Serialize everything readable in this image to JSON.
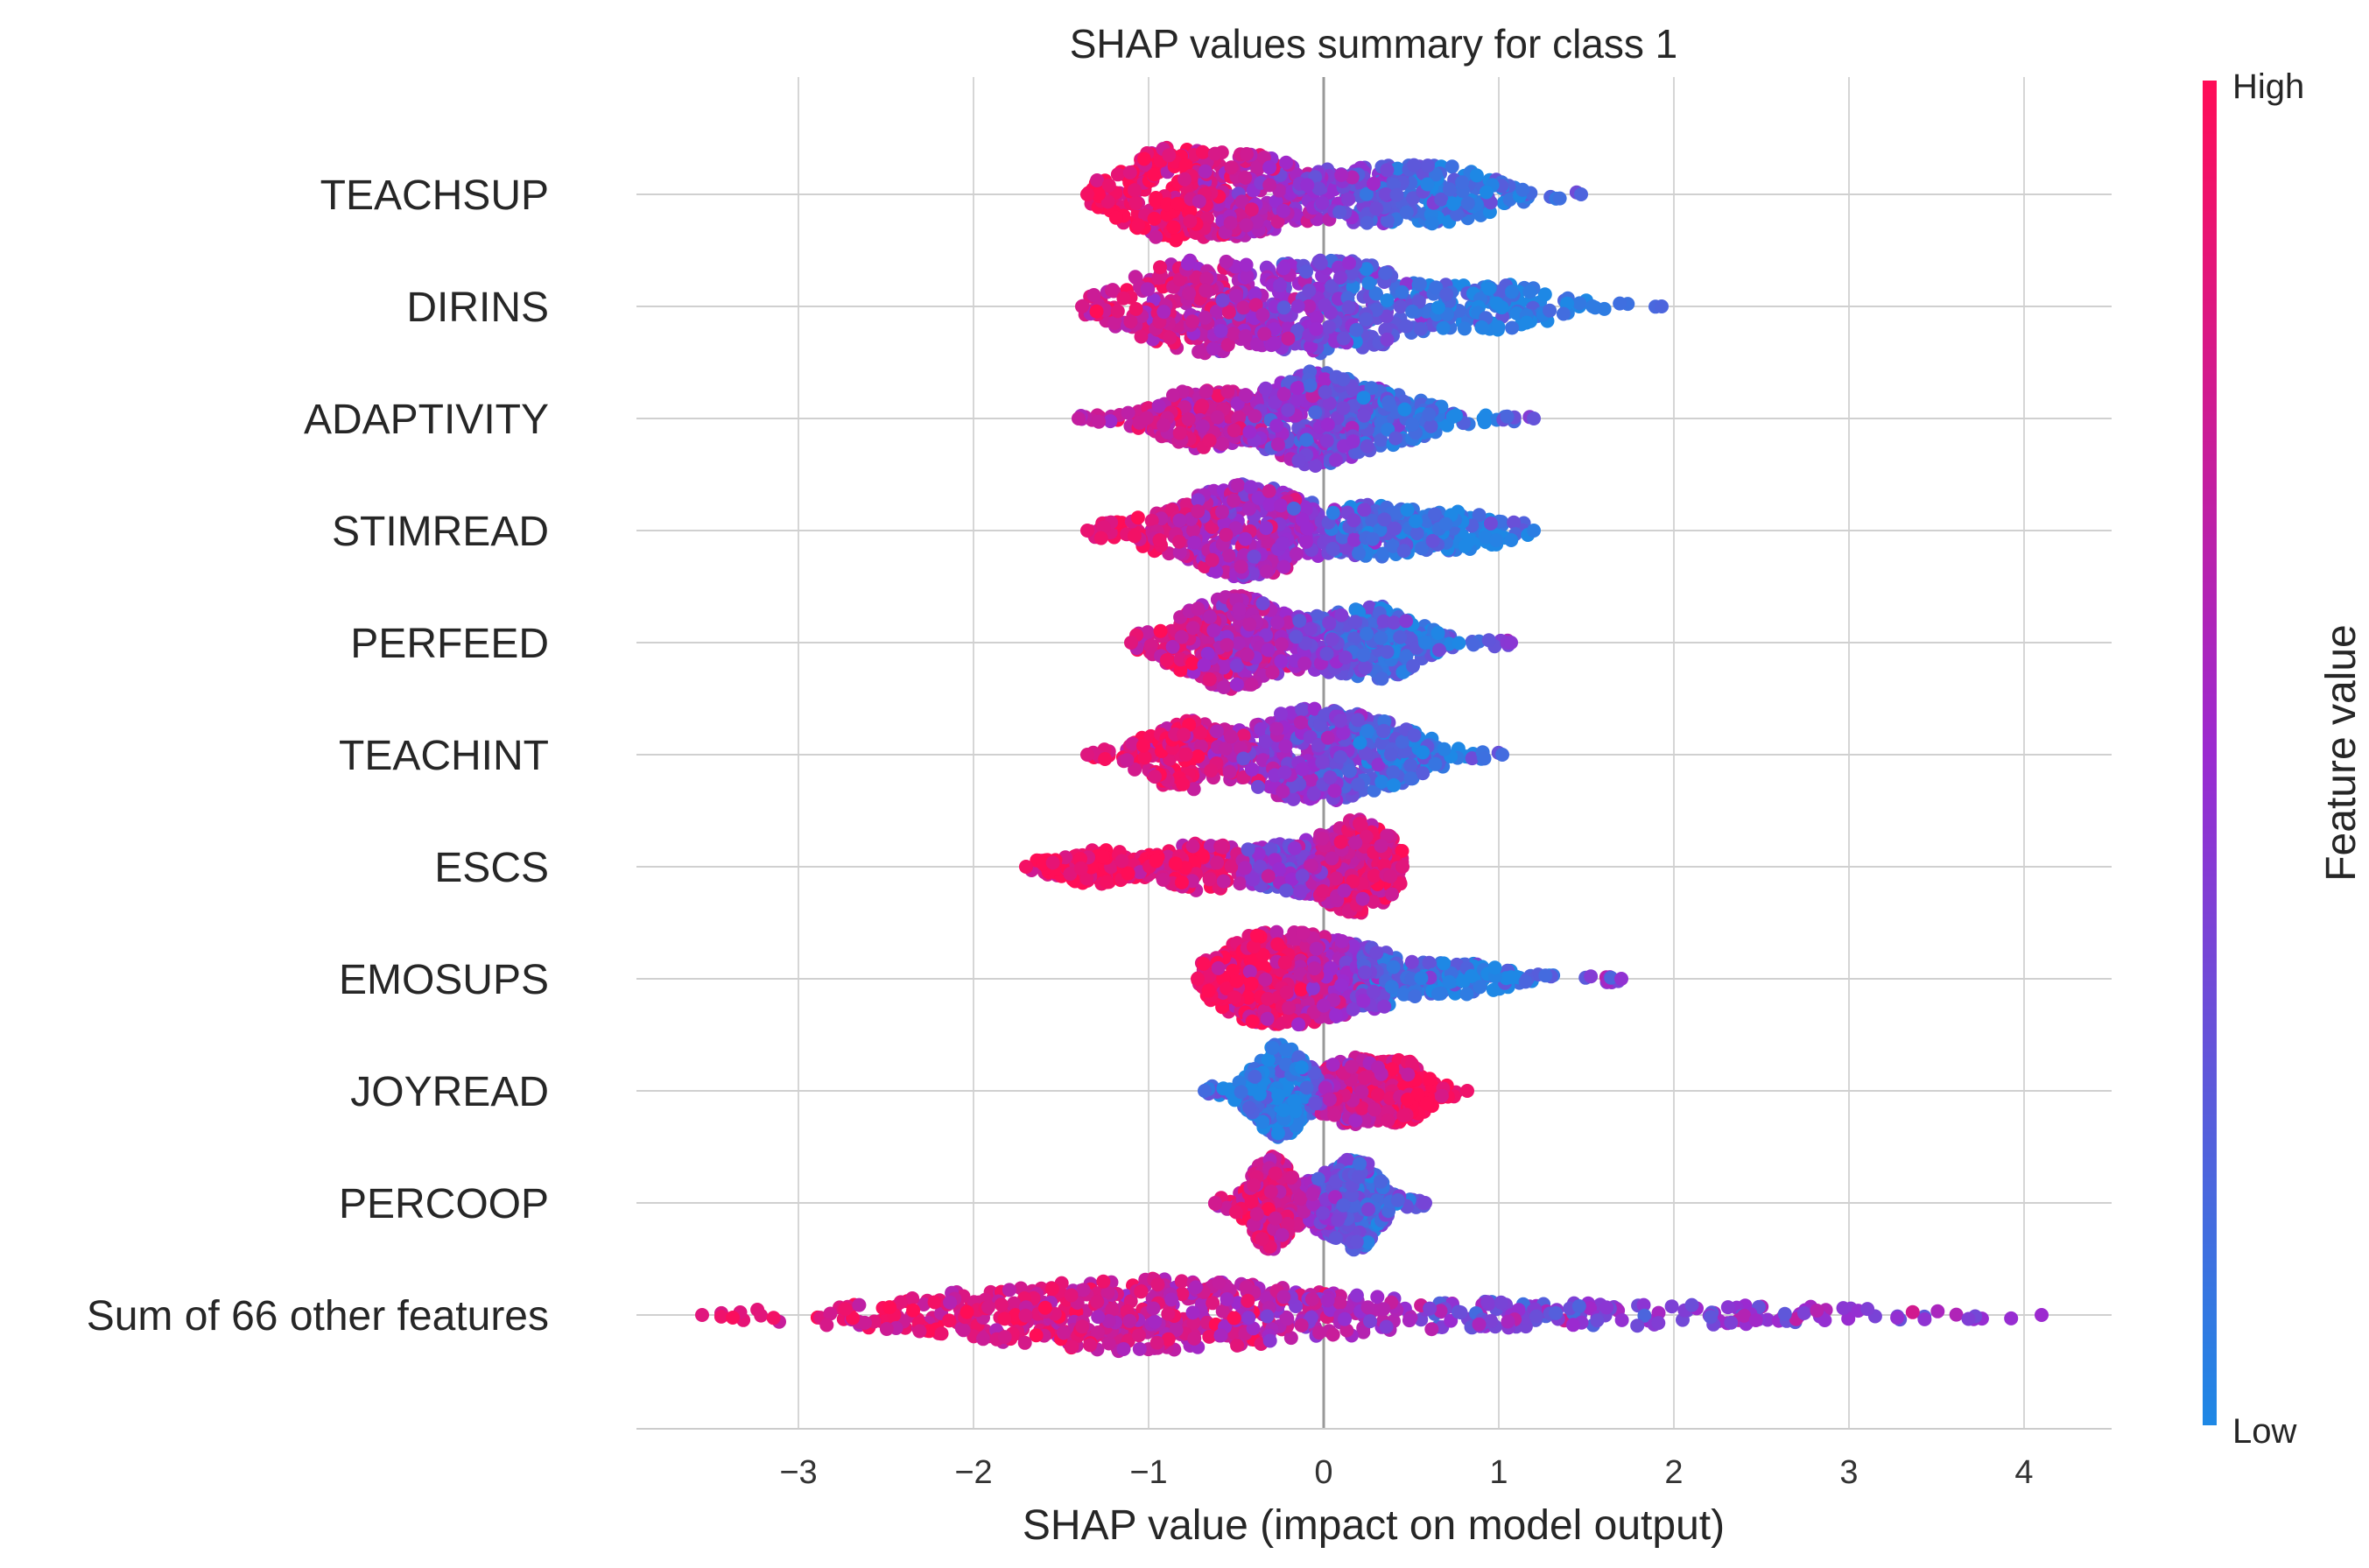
{
  "chart_data": {
    "type": "scatter",
    "subtype": "shap-beeswarm-summary",
    "title": "SHAP values summary for class 1",
    "xlabel": "SHAP value (impact on model output)",
    "xlim": [
      -3.9,
      4.5
    ],
    "xticks": [
      "−3",
      "−2",
      "−1",
      "0",
      "1",
      "2",
      "3",
      "4"
    ],
    "xtick_values": [
      -3,
      -2,
      -1,
      0,
      1,
      2,
      3,
      4
    ],
    "grid": true,
    "colorbar": {
      "label": "Feature value",
      "high_label": "High",
      "low_label": "Low",
      "high_color": "#ff0d57",
      "mid_color": "#9b2ad0",
      "low_color": "#1e88e5"
    },
    "features": [
      {
        "name": "TEACHSUP",
        "min": -1.35,
        "max": 1.47,
        "clusters": [
          [
            -0.9,
            1.0,
            0.95
          ],
          [
            -0.4,
            0.8,
            0.6
          ],
          [
            0.2,
            0.5,
            0.35
          ],
          [
            0.7,
            0.55,
            0.1
          ]
        ]
      },
      {
        "name": "DIRINS",
        "min": -1.38,
        "max": 1.93,
        "clusters": [
          [
            -0.85,
            0.9,
            0.8
          ],
          [
            -0.45,
            0.6,
            0.55
          ],
          [
            0.0,
            0.75,
            0.4
          ],
          [
            0.3,
            0.55,
            0.15
          ],
          [
            1.0,
            0.45,
            0.05
          ]
        ]
      },
      {
        "name": "ADAPTIVITY",
        "min": -1.4,
        "max": 1.2,
        "clusters": [
          [
            -0.7,
            0.85,
            0.75
          ],
          [
            -0.15,
            0.7,
            0.45
          ],
          [
            0.0,
            0.9,
            0.35
          ],
          [
            0.4,
            0.6,
            0.1
          ]
        ]
      },
      {
        "name": "STIMREAD",
        "min": -1.35,
        "max": 1.2,
        "clusters": [
          [
            -0.95,
            0.35,
            0.9
          ],
          [
            -0.55,
            1.0,
            0.6
          ],
          [
            -0.25,
            0.8,
            0.5
          ],
          [
            0.3,
            0.6,
            0.15
          ],
          [
            0.8,
            0.4,
            0.05
          ]
        ]
      },
      {
        "name": "PERFEED",
        "min": -1.1,
        "max": 1.07,
        "clusters": [
          [
            -0.75,
            0.5,
            0.85
          ],
          [
            -0.45,
            0.95,
            0.6
          ],
          [
            0.0,
            0.45,
            0.4
          ],
          [
            0.35,
            0.7,
            0.15
          ]
        ]
      },
      {
        "name": "TEACHINT",
        "min": -1.35,
        "max": 1.02,
        "clusters": [
          [
            -0.8,
            0.85,
            0.85
          ],
          [
            -0.25,
            0.8,
            0.5
          ],
          [
            0.05,
            0.9,
            0.35
          ],
          [
            0.4,
            0.6,
            0.1
          ]
        ]
      },
      {
        "name": "ESCS",
        "min": -1.7,
        "max": 0.45,
        "clusters": [
          [
            -1.3,
            0.25,
            0.95
          ],
          [
            -0.7,
            0.4,
            0.9
          ],
          [
            -0.2,
            0.35,
            0.3
          ],
          [
            0.2,
            0.95,
            0.85
          ]
        ]
      },
      {
        "name": "EMOSUPS",
        "min": -0.72,
        "max": 1.7,
        "clusters": [
          [
            -0.4,
            0.95,
            0.95
          ],
          [
            -0.05,
            0.85,
            0.7
          ],
          [
            0.3,
            0.5,
            0.15
          ],
          [
            0.8,
            0.25,
            0.05
          ]
        ]
      },
      {
        "name": "JOYREAD",
        "min": -0.68,
        "max": 0.82,
        "clusters": [
          [
            -0.25,
            0.95,
            0.05
          ],
          [
            0.15,
            0.6,
            0.7
          ],
          [
            0.45,
            0.55,
            0.95
          ]
        ]
      },
      {
        "name": "PERCOOP",
        "min": -0.62,
        "max": 0.58,
        "clusters": [
          [
            -0.3,
            0.9,
            0.8
          ],
          [
            0.0,
            0.4,
            0.45
          ],
          [
            0.2,
            0.85,
            0.2
          ]
        ]
      },
      {
        "name": "Sum of 66 other features",
        "min": -3.55,
        "max": 4.1,
        "clusters": [
          [
            -2.2,
            0.4,
            0.85
          ],
          [
            -1.2,
            1.0,
            0.8
          ],
          [
            -0.4,
            0.6,
            0.6
          ],
          [
            0.6,
            0.25,
            0.4
          ],
          [
            1.7,
            0.2,
            0.4
          ],
          [
            2.8,
            0.15,
            0.5
          ]
        ]
      }
    ]
  }
}
